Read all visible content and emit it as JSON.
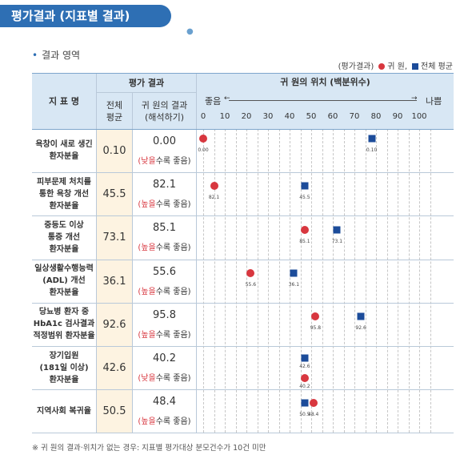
{
  "page_title": "평가결과 (지표별 결과)",
  "section_title": "결과 영역",
  "legend": {
    "label": "(평가결과)",
    "hospital": "귀 원,",
    "national": "전체 평균"
  },
  "header": {
    "indicator": "지 표 명",
    "eval_result": "평가 결과",
    "overall_avg": "전체 평균",
    "hospital_result": "귀 원의 결과 (해석하기)",
    "position": "귀 원의 위치 (백분위수)",
    "good": "좋음",
    "bad": "나쁨"
  },
  "colors": {
    "hospital": "#d8373f",
    "national": "#1c4c9a",
    "header_bg": "#d8e7f4",
    "avg_bg": "#fdf3e1",
    "title_bg": "#2e6fb4"
  },
  "chart_data": {
    "type": "scatter",
    "x_axis": {
      "ticks": [
        0,
        10,
        20,
        30,
        40,
        50,
        60,
        70,
        80,
        90,
        100
      ],
      "xlim": [
        0,
        100
      ],
      "left_label": "좋음",
      "right_label": "나쁨"
    },
    "series_names": [
      "귀 원",
      "전체 평균"
    ],
    "rows": [
      {
        "name": [
          "욕창이 새로 생긴",
          "환자분율"
        ],
        "avg": "0.10",
        "result": "0.00",
        "interp_hl": "낮을",
        "interp_rest": "수록 좋음)",
        "hospital_pct": 0,
        "hospital_label": "0.00",
        "avg_pct": 78,
        "avg_label": "0.10"
      },
      {
        "name": [
          "피부문제 처치를",
          "통한 욕창 개선",
          "환자분율"
        ],
        "avg": "45.5",
        "result": "82.1",
        "interp_hl": "높을",
        "interp_rest": "수록 좋음)",
        "hospital_pct": 5,
        "hospital_label": "82.1",
        "avg_pct": 47,
        "avg_label": "45.5"
      },
      {
        "name": [
          "중등도 이상",
          "통증 개선",
          "환자분율"
        ],
        "avg": "73.1",
        "result": "85.1",
        "interp_hl": "높을",
        "interp_rest": "수록 좋음)",
        "hospital_pct": 47,
        "hospital_label": "85.1",
        "avg_pct": 62,
        "avg_label": "73.1"
      },
      {
        "name": [
          "일상생활수행능력",
          "(ADL) 개선",
          "환자분율"
        ],
        "avg": "36.1",
        "result": "55.6",
        "interp_hl": "높을",
        "interp_rest": "수록 좋음)",
        "hospital_pct": 22,
        "hospital_label": "55.6",
        "avg_pct": 42,
        "avg_label": "36.1"
      },
      {
        "name": [
          "당뇨병 환자 중",
          "HbA1c 검사결과",
          "적정범위 환자분율"
        ],
        "avg": "92.6",
        "result": "95.8",
        "interp_hl": "높을",
        "interp_rest": "수록 좋음)",
        "hospital_pct": 52,
        "hospital_label": "95.8",
        "avg_pct": 73,
        "avg_label": "92.6"
      },
      {
        "name": [
          "장기입원",
          "(181일 이상)",
          "환자분율"
        ],
        "avg": "42.6",
        "result": "40.2",
        "interp_hl": "낮을",
        "interp_rest": "수록 좋음)",
        "hospital_pct": 47,
        "hospital_label": "40.2",
        "avg_pct": 47,
        "avg_label": "42.6",
        "stacked": true
      },
      {
        "name": [
          "지역사회 복귀율"
        ],
        "avg": "50.5",
        "result": "48.4",
        "interp_hl": "높을",
        "interp_rest": "수록 좋음)",
        "hospital_pct": 51,
        "hospital_label": "48.4",
        "avg_pct": 47,
        "avg_label": "50.5"
      }
    ]
  },
  "footnote": "※ 귀 원의 결과·위치가 없는 경우: 지표별 평가대상 분모건수가 10건 미만"
}
